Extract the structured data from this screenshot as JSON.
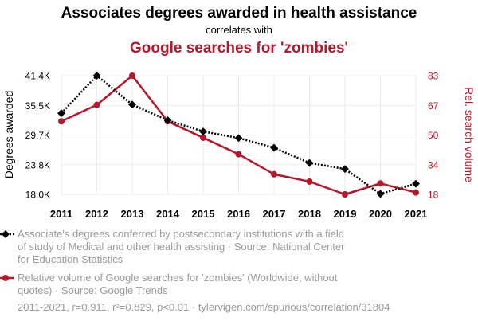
{
  "colors": {
    "series1": "#000000",
    "series2": "#b5172b",
    "legend_text": "#9a9a9a",
    "grid": "#ebebeb"
  },
  "chart_data": {
    "type": "line",
    "title": "Associates degrees awarded in health assistance",
    "subtitle": "correlates with",
    "title2": "Google searches for 'zombies'",
    "x": [
      "2011",
      "2012",
      "2013",
      "2014",
      "2015",
      "2016",
      "2017",
      "2018",
      "2019",
      "2020",
      "2021"
    ],
    "ylabel_left": "Degrees awarded",
    "ylabel_right": "Rel. search volume",
    "yticks_left": [
      "18.0K",
      "23.8K",
      "29.7K",
      "35.5K",
      "41.4K"
    ],
    "yticks_right": [
      "18",
      "34",
      "50",
      "67",
      "83"
    ],
    "ylim_left": [
      18000,
      41400
    ],
    "ylim_right": [
      18,
      83
    ],
    "grid": true,
    "series": [
      {
        "name": "Associate's degrees conferred by postsecondary institutions with a field of study of Medical and other health assisting · Source: National Center for Education Statistics",
        "axis": "left",
        "style": "dotted",
        "marker": "diamond",
        "values": [
          34000,
          41400,
          35700,
          32600,
          30400,
          29100,
          27200,
          24200,
          23000,
          18100,
          20100
        ]
      },
      {
        "name": "Relative volume of Google searches for 'zombies' (Worldwide, without quotes) · Source: Google Trends",
        "axis": "right",
        "style": "solid",
        "marker": "circle",
        "values": [
          58,
          67,
          83,
          58,
          49,
          40,
          29,
          25,
          18,
          24,
          19
        ]
      }
    ],
    "footer": "2011-2021, r=0.911, r²=0.829, p<0.01 · tylervigen.com/spurious/correlation/31804"
  }
}
